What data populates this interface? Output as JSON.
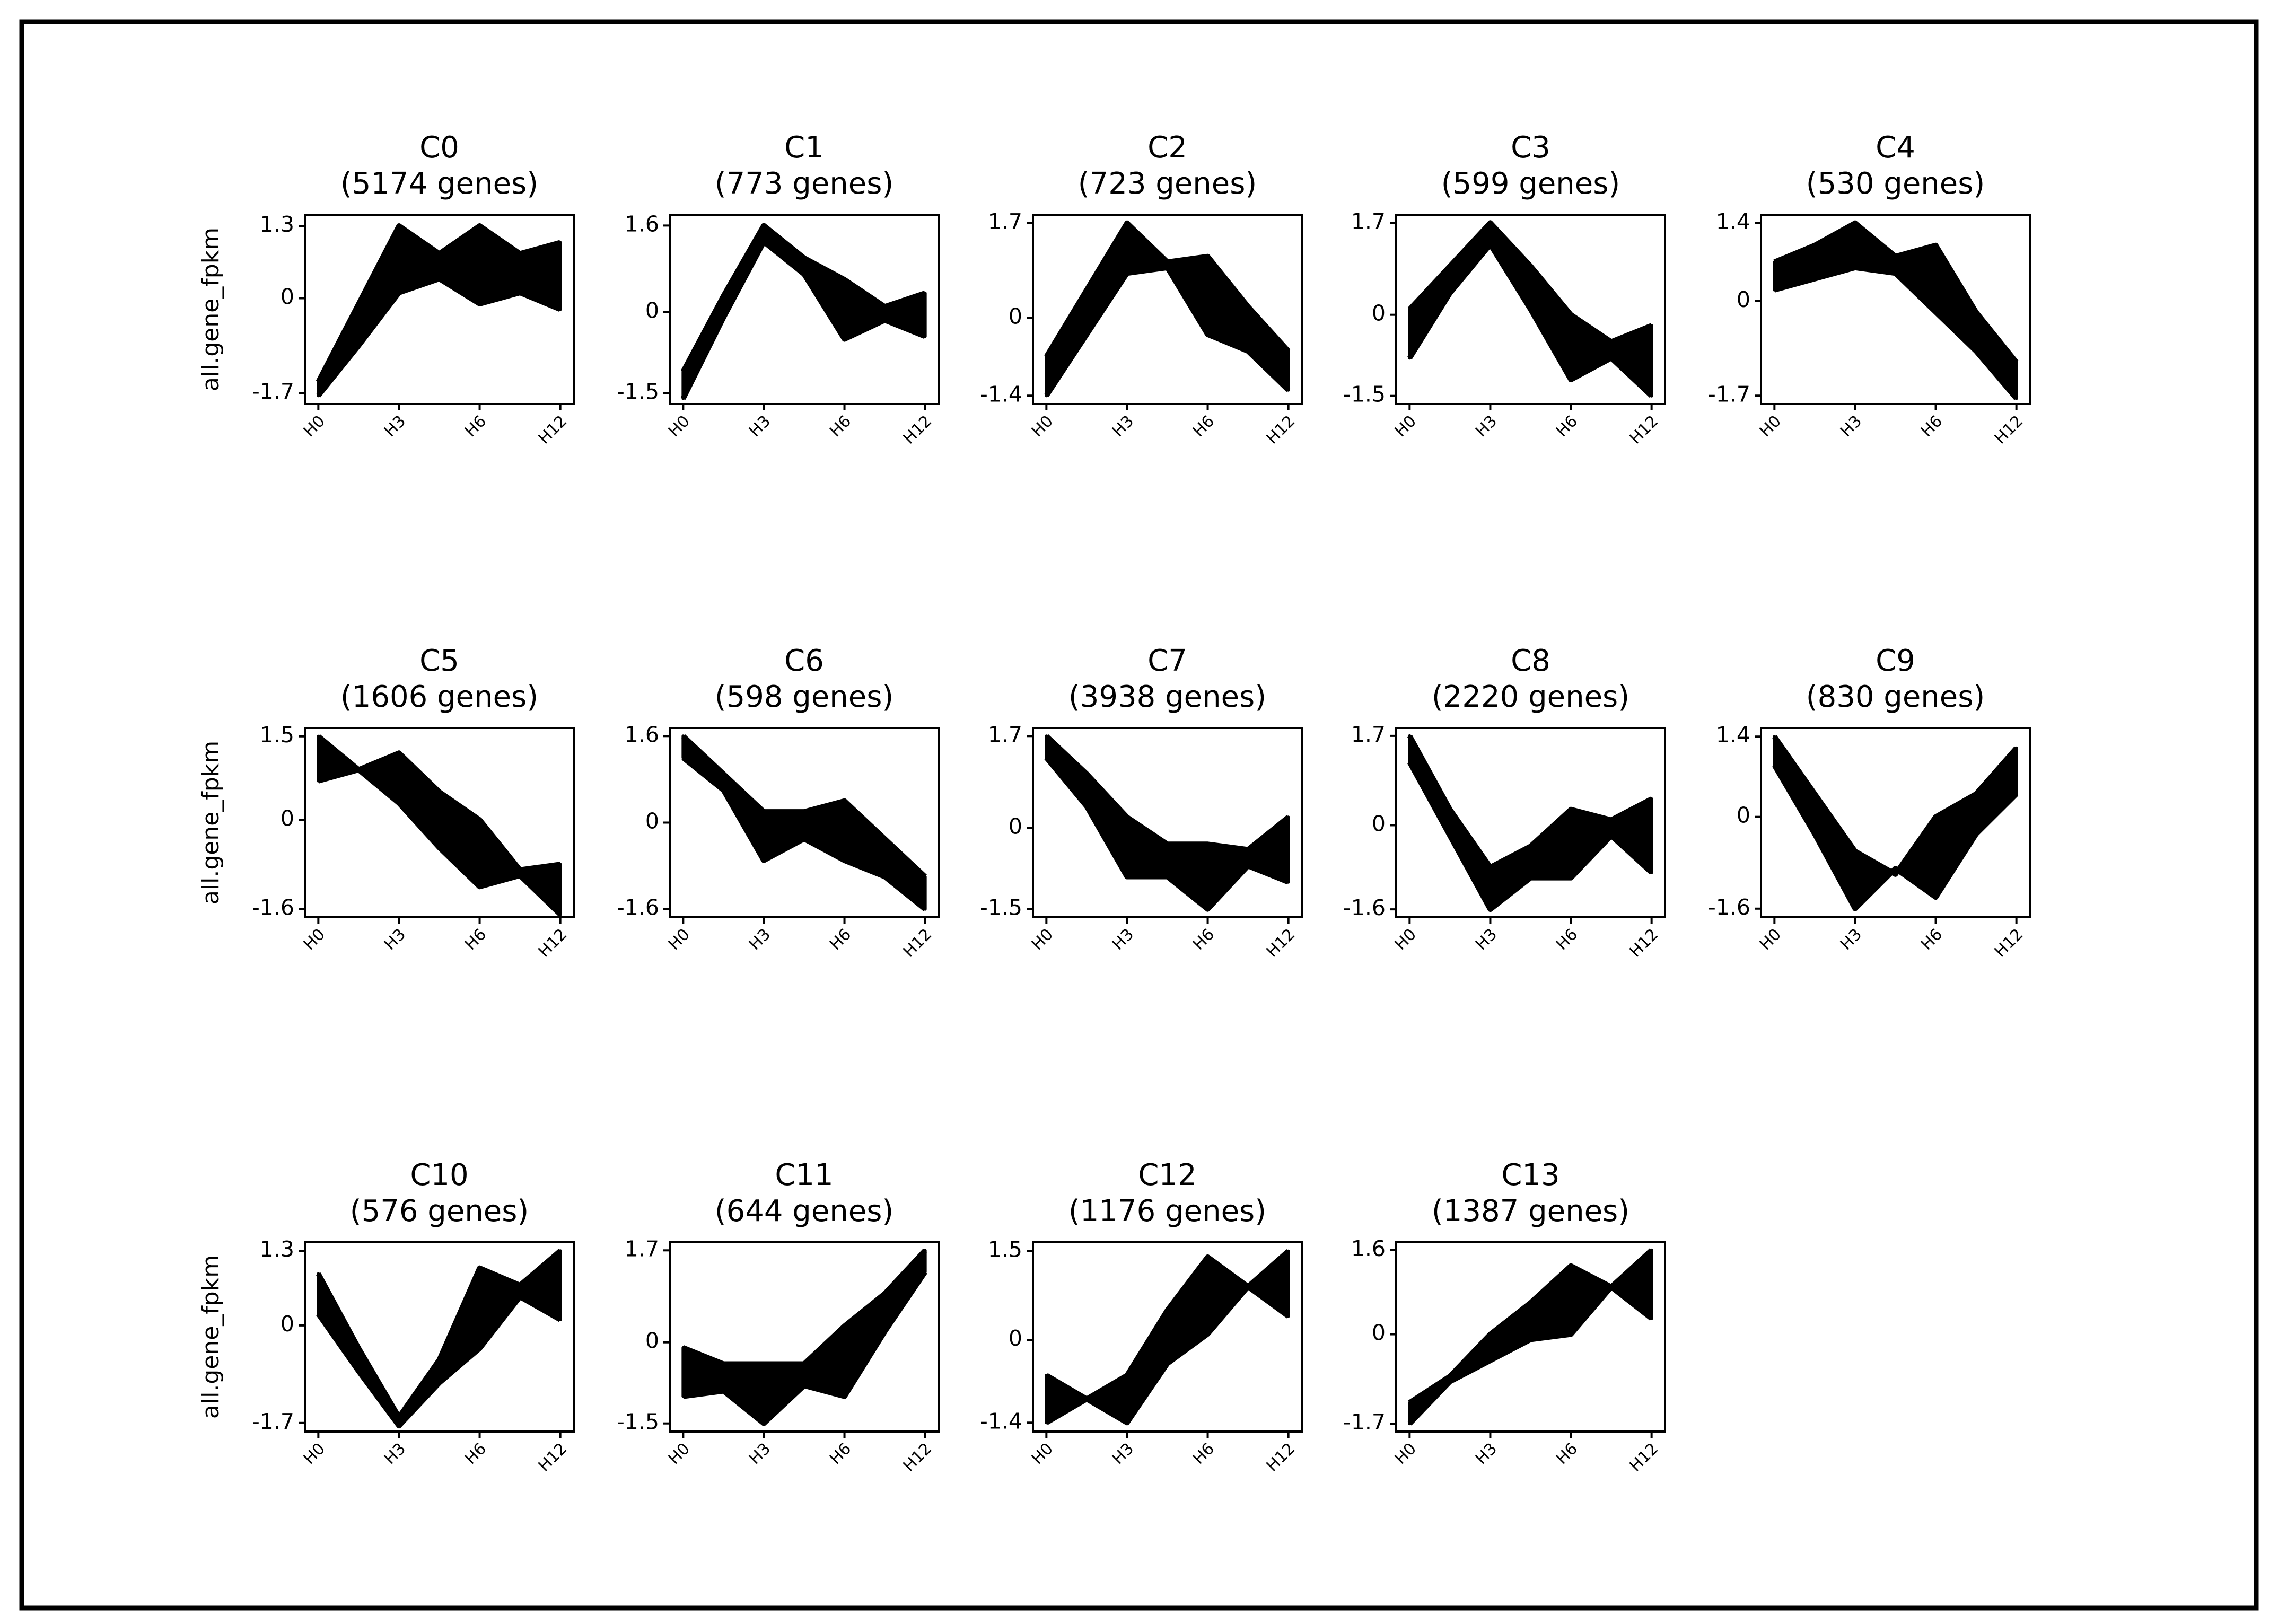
{
  "chart_data": [
    {
      "type": "band",
      "title": "C0",
      "subtitle": "(5174 genes)",
      "ylabel": "all.gene_fpkm",
      "categories": [
        "H0",
        null,
        "H3",
        null,
        "H6",
        null,
        "H12"
      ],
      "series": [
        {
          "color": "#000000",
          "values": [
            -1.5,
            -0.1,
            1.3,
            0.8,
            1.3,
            0.8,
            1.0
          ]
        },
        {
          "color": "#000000",
          "values": [
            -1.75,
            -0.85,
            0.1,
            0.35,
            -0.1,
            0.1,
            -0.2
          ]
        }
      ],
      "ylim": [
        -1.9,
        1.5
      ],
      "yticks": [
        -1.7,
        0,
        1.3
      ]
    },
    {
      "type": "band",
      "title": "C1",
      "subtitle": "(773 genes)",
      "categories": [
        "H0",
        null,
        "H3",
        null,
        "H6",
        null,
        "H12"
      ],
      "series": [
        {
          "color": "#000000",
          "values": [
            -1.1,
            0.3,
            1.6,
            1.0,
            0.6,
            0.1,
            0.35
          ]
        },
        {
          "color": "#000000",
          "values": [
            -1.6,
            -0.1,
            1.3,
            0.7,
            -0.5,
            -0.15,
            -0.45
          ]
        }
      ],
      "ylim": [
        -1.7,
        1.8
      ],
      "yticks": [
        -1.5,
        0,
        1.6
      ]
    },
    {
      "type": "band",
      "title": "C2",
      "subtitle": "(723 genes)",
      "categories": [
        "H0",
        null,
        "H3",
        null,
        "H6",
        null,
        "H12"
      ],
      "series": [
        {
          "color": "#000000",
          "values": [
            -0.7,
            0.5,
            1.7,
            1.0,
            1.1,
            0.2,
            -0.6
          ]
        },
        {
          "color": "#000000",
          "values": [
            -1.4,
            -0.3,
            0.8,
            0.9,
            -0.3,
            -0.6,
            -1.3
          ]
        }
      ],
      "ylim": [
        -1.55,
        1.85
      ],
      "yticks": [
        -1.4,
        0,
        1.7
      ]
    },
    {
      "type": "band",
      "title": "C3",
      "subtitle": "(599 genes)",
      "categories": [
        "H0",
        null,
        "H3",
        null,
        "H6",
        null,
        "H12"
      ],
      "series": [
        {
          "color": "#000000",
          "values": [
            0.1,
            0.9,
            1.7,
            0.9,
            0.0,
            -0.5,
            -0.2
          ]
        },
        {
          "color": "#000000",
          "values": [
            -0.8,
            0.4,
            1.3,
            0.1,
            -1.2,
            -0.8,
            -1.5
          ]
        }
      ],
      "ylim": [
        -1.65,
        1.85
      ],
      "yticks": [
        -1.5,
        0,
        1.7
      ]
    },
    {
      "type": "band",
      "title": "C4",
      "subtitle": "(530 genes)",
      "categories": [
        "H0",
        null,
        "H3",
        null,
        "H6",
        null,
        "H12"
      ],
      "series": [
        {
          "color": "#000000",
          "values": [
            0.7,
            1.0,
            1.4,
            0.8,
            1.0,
            -0.2,
            -1.1
          ]
        },
        {
          "color": "#000000",
          "values": [
            0.2,
            0.4,
            0.6,
            0.5,
            -0.2,
            -0.9,
            -1.75
          ]
        }
      ],
      "ylim": [
        -1.85,
        1.55
      ],
      "yticks": [
        -1.7,
        0,
        1.4
      ]
    },
    {
      "type": "band",
      "title": "C5",
      "subtitle": "(1606 genes)",
      "ylabel": "all.gene_fpkm",
      "categories": [
        "H0",
        null,
        "H3",
        null,
        "H6",
        null,
        "H12"
      ],
      "series": [
        {
          "color": "#000000",
          "values": [
            1.5,
            0.9,
            1.2,
            0.5,
            0.0,
            -0.9,
            -0.8
          ]
        },
        {
          "color": "#000000",
          "values": [
            0.7,
            0.9,
            0.3,
            -0.5,
            -1.2,
            -1.0,
            -1.7
          ]
        }
      ],
      "ylim": [
        -1.75,
        1.65
      ],
      "yticks": [
        -1.6,
        0,
        1.5
      ]
    },
    {
      "type": "band",
      "title": "C6",
      "subtitle": "(598 genes)",
      "categories": [
        "H0",
        null,
        "H3",
        null,
        "H6",
        null,
        "H12"
      ],
      "series": [
        {
          "color": "#000000",
          "values": [
            1.6,
            0.9,
            0.2,
            0.2,
            0.4,
            -0.3,
            -1.0
          ]
        },
        {
          "color": "#000000",
          "values": [
            1.2,
            0.6,
            -0.7,
            -0.3,
            -0.7,
            -1.0,
            -1.6
          ]
        }
      ],
      "ylim": [
        -1.75,
        1.75
      ],
      "yticks": [
        -1.6,
        0,
        1.6
      ]
    },
    {
      "type": "band",
      "title": "C7",
      "subtitle": "(3938 genes)",
      "categories": [
        "H0",
        null,
        "H3",
        null,
        "H6",
        null,
        "H12"
      ],
      "series": [
        {
          "color": "#000000",
          "values": [
            1.7,
            1.0,
            0.2,
            -0.3,
            -0.3,
            -0.4,
            0.2
          ]
        },
        {
          "color": "#000000",
          "values": [
            1.3,
            0.4,
            -0.9,
            -0.9,
            -1.5,
            -0.7,
            -1.0
          ]
        }
      ],
      "ylim": [
        -1.65,
        1.85
      ],
      "yticks": [
        -1.5,
        0,
        1.7
      ]
    },
    {
      "type": "band",
      "title": "C8",
      "subtitle": "(2220 genes)",
      "categories": [
        "H0",
        null,
        "H3",
        null,
        "H6",
        null,
        "H12"
      ],
      "series": [
        {
          "color": "#000000",
          "values": [
            1.7,
            0.3,
            -0.8,
            -0.4,
            0.3,
            0.1,
            0.5
          ]
        },
        {
          "color": "#000000",
          "values": [
            1.2,
            -0.2,
            -1.6,
            -1.0,
            -1.0,
            -0.2,
            -0.9
          ]
        }
      ],
      "ylim": [
        -1.75,
        1.85
      ],
      "yticks": [
        -1.6,
        0,
        1.7
      ]
    },
    {
      "type": "band",
      "title": "C9",
      "subtitle": "(830 genes)",
      "categories": [
        "H0",
        null,
        "H3",
        null,
        "H6",
        null,
        "H12"
      ],
      "series": [
        {
          "color": "#000000",
          "values": [
            1.4,
            0.4,
            -0.6,
            -1.0,
            0.0,
            0.4,
            1.2
          ]
        },
        {
          "color": "#000000",
          "values": [
            0.9,
            -0.3,
            -1.6,
            -0.9,
            -1.4,
            -0.3,
            0.4
          ]
        }
      ],
      "ylim": [
        -1.75,
        1.55
      ],
      "yticks": [
        -1.6,
        0,
        1.4
      ]
    },
    {
      "type": "band",
      "title": "C10",
      "subtitle": "(576 genes)",
      "ylabel": "all.gene_fpkm",
      "categories": [
        "H0",
        null,
        "H3",
        null,
        "H6",
        null,
        "H12"
      ],
      "series": [
        {
          "color": "#000000",
          "values": [
            0.9,
            -0.4,
            -1.6,
            -0.6,
            1.0,
            0.7,
            1.3
          ]
        },
        {
          "color": "#000000",
          "values": [
            0.2,
            -0.8,
            -1.75,
            -1.0,
            -0.4,
            0.5,
            0.1
          ]
        }
      ],
      "ylim": [
        -1.85,
        1.45
      ],
      "yticks": [
        -1.7,
        0,
        1.3
      ]
    },
    {
      "type": "band",
      "title": "C11",
      "subtitle": "(644 genes)",
      "categories": [
        "H0",
        null,
        "H3",
        null,
        "H6",
        null,
        "H12"
      ],
      "series": [
        {
          "color": "#000000",
          "values": [
            -0.1,
            -0.4,
            -0.4,
            -0.4,
            0.3,
            0.9,
            1.7
          ]
        },
        {
          "color": "#000000",
          "values": [
            -1.0,
            -0.9,
            -1.5,
            -0.8,
            -1.0,
            0.2,
            1.3
          ]
        }
      ],
      "ylim": [
        -1.65,
        1.85
      ],
      "yticks": [
        -1.5,
        0,
        1.7
      ]
    },
    {
      "type": "band",
      "title": "C12",
      "subtitle": "(1176 genes)",
      "categories": [
        "H0",
        null,
        "H3",
        null,
        "H6",
        null,
        "H12"
      ],
      "series": [
        {
          "color": "#000000",
          "values": [
            -0.6,
            -1.0,
            -0.6,
            0.5,
            1.4,
            0.9,
            1.5
          ]
        },
        {
          "color": "#000000",
          "values": [
            -1.4,
            -1.0,
            -1.4,
            -0.4,
            0.1,
            0.9,
            0.4
          ]
        }
      ],
      "ylim": [
        -1.55,
        1.65
      ],
      "yticks": [
        -1.4,
        0,
        1.5
      ]
    },
    {
      "type": "band",
      "title": "C13",
      "subtitle": "(1387 genes)",
      "categories": [
        "H0",
        null,
        "H3",
        null,
        "H6",
        null,
        "H12"
      ],
      "series": [
        {
          "color": "#000000",
          "values": [
            -1.3,
            -0.8,
            0.0,
            0.6,
            1.3,
            0.9,
            1.6
          ]
        },
        {
          "color": "#000000",
          "values": [
            -1.7,
            -0.9,
            -0.5,
            -0.1,
            0.0,
            0.9,
            0.3
          ]
        }
      ],
      "ylim": [
        -1.85,
        1.75
      ],
      "yticks": [
        -1.7,
        0,
        1.6
      ]
    }
  ]
}
